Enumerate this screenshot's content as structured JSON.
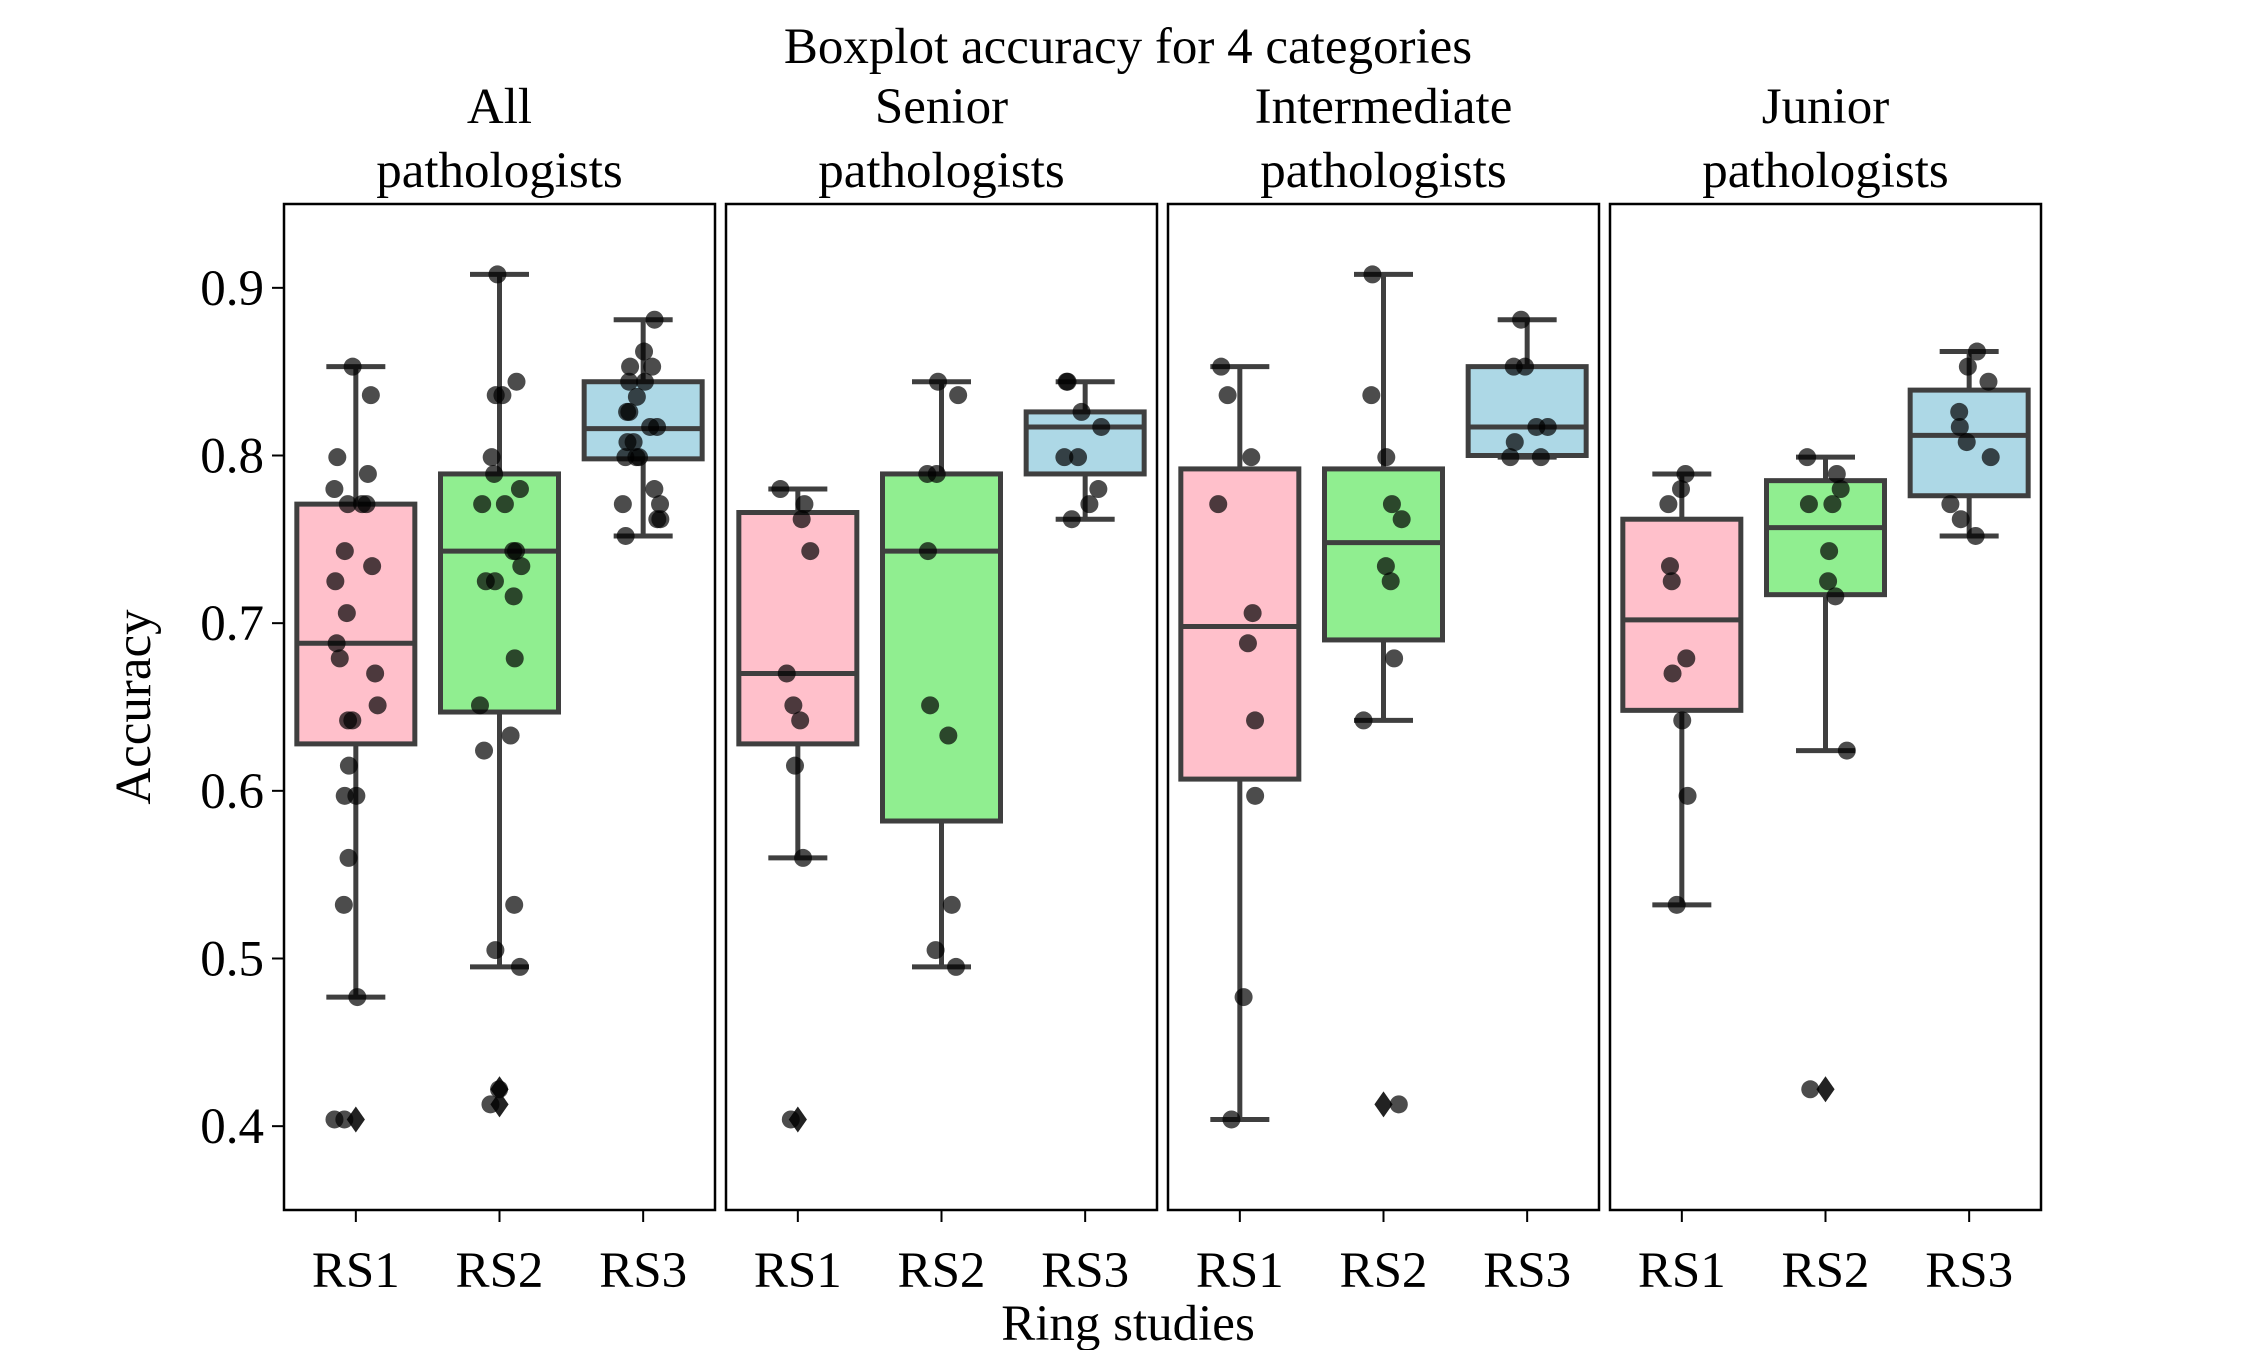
{
  "chart_data": {
    "type": "boxplot",
    "title": "Boxplot accuracy for 4 categories",
    "xlabel": "Ring studies",
    "ylabel": "Accuracy",
    "ylim": [
      0.35,
      0.95
    ],
    "yticks": [
      0.4,
      0.5,
      0.6,
      0.7,
      0.8,
      0.9
    ],
    "ytick_labels": [
      "0.4",
      "0.5",
      "0.6",
      "0.7",
      "0.8",
      "0.9"
    ],
    "categories": [
      "RS1",
      "RS2",
      "RS3"
    ],
    "colors": {
      "RS1": "#ffc0cb",
      "RS2": "#90ee90",
      "RS3": "#add8e6",
      "edge": "#3f3f3f",
      "point": "#000000"
    },
    "grid": false,
    "panels": [
      {
        "title_lines": [
          "All",
          "pathologists"
        ],
        "boxes": [
          {
            "category": "RS1",
            "q1": 0.628,
            "median": 0.688,
            "q3": 0.771,
            "whisker_low": 0.477,
            "whisker_high": 0.853,
            "outliers": [
              0.404
            ],
            "points": [
              0.853,
              0.836,
              0.799,
              0.789,
              0.78,
              0.771,
              0.771,
              0.771,
              0.743,
              0.734,
              0.725,
              0.706,
              0.688,
              0.679,
              0.67,
              0.651,
              0.642,
              0.642,
              0.615,
              0.597,
              0.597,
              0.56,
              0.532,
              0.477,
              0.404,
              0.404
            ]
          },
          {
            "category": "RS2",
            "q1": 0.647,
            "median": 0.743,
            "q3": 0.789,
            "whisker_low": 0.495,
            "whisker_high": 0.908,
            "outliers": [
              0.422,
              0.413
            ],
            "points": [
              0.908,
              0.844,
              0.836,
              0.836,
              0.799,
              0.789,
              0.78,
              0.771,
              0.771,
              0.743,
              0.743,
              0.734,
              0.725,
              0.725,
              0.716,
              0.679,
              0.651,
              0.633,
              0.624,
              0.532,
              0.505,
              0.495,
              0.422,
              0.413
            ]
          },
          {
            "category": "RS3",
            "q1": 0.798,
            "median": 0.816,
            "q3": 0.844,
            "whisker_low": 0.752,
            "whisker_high": 0.881,
            "outliers": [],
            "points": [
              0.881,
              0.862,
              0.853,
              0.853,
              0.844,
              0.844,
              0.835,
              0.826,
              0.826,
              0.817,
              0.817,
              0.808,
              0.808,
              0.799,
              0.799,
              0.799,
              0.78,
              0.771,
              0.771,
              0.762,
              0.762,
              0.752
            ]
          }
        ]
      },
      {
        "title_lines": [
          "Senior",
          "pathologists"
        ],
        "boxes": [
          {
            "category": "RS1",
            "q1": 0.628,
            "median": 0.67,
            "q3": 0.766,
            "whisker_low": 0.56,
            "whisker_high": 0.78,
            "outliers": [
              0.404
            ],
            "points": [
              0.78,
              0.771,
              0.762,
              0.743,
              0.67,
              0.651,
              0.642,
              0.615,
              0.56,
              0.404
            ]
          },
          {
            "category": "RS2",
            "q1": 0.582,
            "median": 0.743,
            "q3": 0.789,
            "whisker_low": 0.495,
            "whisker_high": 0.844,
            "outliers": [],
            "points": [
              0.844,
              0.836,
              0.789,
              0.789,
              0.743,
              0.651,
              0.633,
              0.532,
              0.505,
              0.495
            ]
          },
          {
            "category": "RS3",
            "q1": 0.789,
            "median": 0.817,
            "q3": 0.826,
            "whisker_low": 0.762,
            "whisker_high": 0.844,
            "outliers": [],
            "points": [
              0.844,
              0.844,
              0.826,
              0.817,
              0.799,
              0.799,
              0.78,
              0.771,
              0.762
            ]
          }
        ]
      },
      {
        "title_lines": [
          "Intermediate",
          "pathologists"
        ],
        "boxes": [
          {
            "category": "RS1",
            "q1": 0.607,
            "median": 0.698,
            "q3": 0.792,
            "whisker_low": 0.404,
            "whisker_high": 0.853,
            "outliers": [],
            "points": [
              0.853,
              0.836,
              0.799,
              0.771,
              0.706,
              0.688,
              0.642,
              0.597,
              0.477,
              0.404
            ]
          },
          {
            "category": "RS2",
            "q1": 0.69,
            "median": 0.748,
            "q3": 0.792,
            "whisker_low": 0.642,
            "whisker_high": 0.908,
            "outliers": [
              0.413
            ],
            "points": [
              0.908,
              0.836,
              0.799,
              0.771,
              0.762,
              0.734,
              0.725,
              0.679,
              0.642,
              0.413
            ]
          },
          {
            "category": "RS3",
            "q1": 0.8,
            "median": 0.817,
            "q3": 0.853,
            "whisker_low": 0.799,
            "whisker_high": 0.881,
            "outliers": [],
            "points": [
              0.881,
              0.853,
              0.853,
              0.817,
              0.817,
              0.808,
              0.799,
              0.799
            ]
          }
        ]
      },
      {
        "title_lines": [
          "Junior",
          "pathologists"
        ],
        "boxes": [
          {
            "category": "RS1",
            "q1": 0.648,
            "median": 0.702,
            "q3": 0.762,
            "whisker_low": 0.532,
            "whisker_high": 0.789,
            "outliers": [],
            "points": [
              0.789,
              0.78,
              0.771,
              0.734,
              0.725,
              0.679,
              0.67,
              0.642,
              0.597,
              0.532
            ]
          },
          {
            "category": "RS2",
            "q1": 0.717,
            "median": 0.757,
            "q3": 0.785,
            "whisker_low": 0.624,
            "whisker_high": 0.799,
            "outliers": [
              0.422
            ],
            "points": [
              0.799,
              0.789,
              0.78,
              0.771,
              0.771,
              0.743,
              0.725,
              0.716,
              0.624,
              0.422
            ]
          },
          {
            "category": "RS3",
            "q1": 0.776,
            "median": 0.812,
            "q3": 0.839,
            "whisker_low": 0.752,
            "whisker_high": 0.862,
            "outliers": [],
            "points": [
              0.862,
              0.853,
              0.844,
              0.826,
              0.817,
              0.808,
              0.799,
              0.771,
              0.762,
              0.752
            ]
          }
        ]
      }
    ]
  }
}
